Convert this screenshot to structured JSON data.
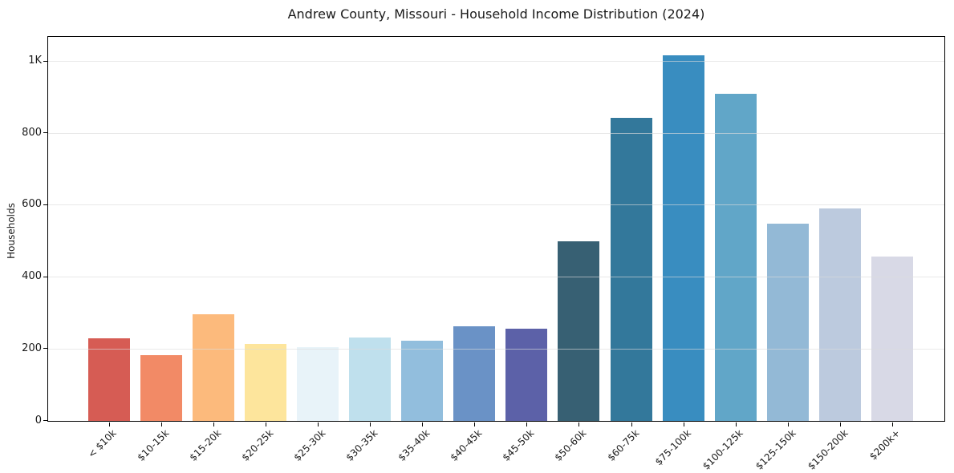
{
  "chart_data": {
    "type": "bar",
    "title": "Andrew County, Missouri - Household Income Distribution (2024)",
    "xlabel": "",
    "ylabel": "Households",
    "categories": [
      "< $10k",
      "$10-15k",
      "$15-20k",
      "$20-25k",
      "$25-30k",
      "$30-35k",
      "$35-40k",
      "$40-45k",
      "$45-50k",
      "$50-60k",
      "$60-75k",
      "$75-100k",
      "$100-125k",
      "$125-150k",
      "$150-200k",
      "$200k+"
    ],
    "values": [
      230,
      183,
      296,
      215,
      205,
      231,
      222,
      264,
      256,
      500,
      843,
      1016,
      911,
      549,
      590,
      458
    ],
    "bar_colors": [
      "#d65c54",
      "#f28a66",
      "#fcba7c",
      "#fde59c",
      "#e8f3f9",
      "#bfe0ed",
      "#92bedd",
      "#6a92c6",
      "#5c61a8",
      "#376073",
      "#33789b",
      "#398dc0",
      "#61a6c8",
      "#93b9d6",
      "#bccade",
      "#d8d9e6"
    ],
    "yticks": [
      {
        "value": 0,
        "label": "0"
      },
      {
        "value": 200,
        "label": "200"
      },
      {
        "value": 400,
        "label": "400"
      },
      {
        "value": 600,
        "label": "600"
      },
      {
        "value": 800,
        "label": "800"
      },
      {
        "value": 1000,
        "label": "1K"
      }
    ],
    "ylim": [
      0,
      1066
    ],
    "grid": "horizontal gridlines drawn over bars",
    "legend": "none",
    "background_color": "#ffffff",
    "spine_color": "#000000"
  }
}
